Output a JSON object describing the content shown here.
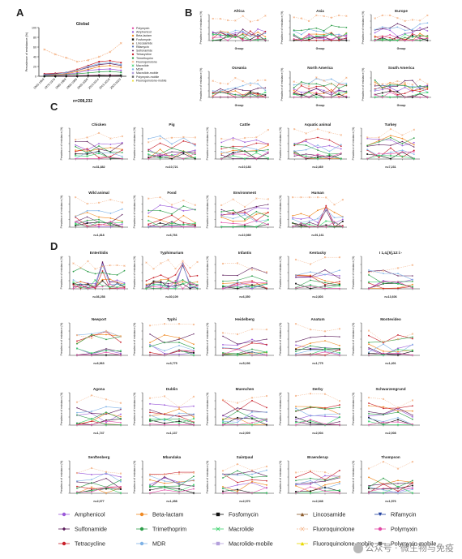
{
  "panels": {
    "A": "A",
    "B": "B",
    "C": "C",
    "D": "D"
  },
  "colors": {
    "Amphenicol": "#9b59d9",
    "Beta-lactam": "#f08a24",
    "Fosfomycin": "#111111",
    "Lincosamide": "#8b5a2b",
    "Rifamycin": "#1f3f9f",
    "Sulfonamide": "#5a1a5a",
    "Trimethoprim": "#2e9e4a",
    "Macrolide": "#3ad16b",
    "Fluoroquinolone": "#f5b58a",
    "Polymyxin": "#e24aa6",
    "Tetracycline": "#c8202a",
    "MDR": "#7fb2e6",
    "Macrolide-mobile": "#b4a0dc",
    "Fluoroquinolone-mobile": "#e8d800",
    "Polymyxin-mobile": "#666666"
  },
  "ylabel": "Prevalence of resistance (%)",
  "xlabel_group": "Group",
  "panel_a": {
    "title": "Global",
    "n_label": "n=208,232",
    "xticks": [
      "1960-1969",
      "1970-1979",
      "1980-1989",
      "1990-1999",
      "2000-2009",
      "2010-2014",
      "2015-2019",
      "2020-2023"
    ],
    "legend": [
      "Polymyxin",
      "Amphenicol",
      "Beta-lactam",
      "Fosfomycin",
      "Lincosamide",
      "Rifamycin",
      "Sulfonamide",
      "Tetracycline",
      "Trimethoprim",
      "Fluoroquinolone",
      "Macrolide",
      "MDR",
      "Macrolide-mobile",
      "Polymyxin-mobile",
      "Fluoroquinolone-mobile"
    ]
  },
  "panel_b": [
    {
      "title": "Africa"
    },
    {
      "title": "Asia"
    },
    {
      "title": "Europe"
    },
    {
      "title": "Oceania"
    },
    {
      "title": "North America"
    },
    {
      "title": "South America"
    }
  ],
  "panel_c": [
    {
      "title": "Chicken",
      "n": "n=31,882"
    },
    {
      "title": "Pig",
      "n": "n=10,721"
    },
    {
      "title": "Cattle",
      "n": "n=10,183"
    },
    {
      "title": "Aquatic animal",
      "n": "n=2,469"
    },
    {
      "title": "Turkey",
      "n": "n=7,231"
    },
    {
      "title": "Wild animal",
      "n": "n=1,818"
    },
    {
      "title": "Food",
      "n": "n=6,766"
    },
    {
      "title": "Environment",
      "n": "n=10,989"
    },
    {
      "title": "Human",
      "n": "n=91,161"
    }
  ],
  "panel_d": [
    {
      "title": "Enteritidis",
      "n": "n=36,258"
    },
    {
      "title": "Typhimurium",
      "n": "n=30,109"
    },
    {
      "title": "Infantis",
      "n": "n=6,350"
    },
    {
      "title": "Kentucky",
      "n": "n=2,803"
    },
    {
      "title": "I 1,4,[5],12:i:-",
      "n": "n=13,606"
    },
    {
      "title": "Newport",
      "n": "n=6,963"
    },
    {
      "title": "Typhi",
      "n": "n=3,775"
    },
    {
      "title": "Heidelberg",
      "n": "n=5,196"
    },
    {
      "title": "Anatum",
      "n": "n=1,775"
    },
    {
      "title": "Montevideo",
      "n": "n=1,401"
    },
    {
      "title": "Agona",
      "n": "n=1,747"
    },
    {
      "title": "Dublin",
      "n": "n=1,137"
    },
    {
      "title": "Muenchen",
      "n": "n=2,009"
    },
    {
      "title": "Derby",
      "n": "n=2,004"
    },
    {
      "title": "Schwarzengrund",
      "n": "n=2,008"
    },
    {
      "title": "Senftenberg",
      "n": "n=2,077"
    },
    {
      "title": "Mbandaka",
      "n": "n=1,458"
    },
    {
      "title": "Saintpaul",
      "n": "n=2,070"
    },
    {
      "title": "Braenderup",
      "n": "n=2,348"
    },
    {
      "title": "Thompson",
      "n": "n=1,576"
    }
  ],
  "bottom_legend": [
    [
      "Amphenicol",
      "Beta-lactam",
      "Fosfomycin",
      "Lincosamide",
      "Rifamycin"
    ],
    [
      "Sulfonamide",
      "Trimethoprim",
      "Macrolide",
      "Fluoroquinolone",
      "Polymyxin"
    ],
    [
      "Tetracycline",
      "MDR",
      "Macrolide-mobile",
      "Fluoroquinolone-mobile",
      "Polymyxin-mobile"
    ]
  ],
  "watermark": "公众号 · 微生物与免疫",
  "chart_data": {
    "type": "line",
    "title": "Global",
    "xlabel": "",
    "ylabel": "Prevalence of resistance (%)",
    "ylim": [
      0,
      100
    ],
    "categories": [
      "1960-1969",
      "1970-1979",
      "1980-1989",
      "1990-1999",
      "2000-2009",
      "2010-2014",
      "2015-2019",
      "2020-2023"
    ],
    "series": [
      {
        "name": "Fluoroquinolone",
        "values": [
          55,
          45,
          38,
          30,
          33,
          40,
          50,
          68
        ]
      },
      {
        "name": "Tetracycline",
        "values": [
          5,
          6,
          8,
          14,
          22,
          30,
          32,
          28
        ]
      },
      {
        "name": "Sulfonamide",
        "values": [
          4,
          5,
          7,
          12,
          18,
          24,
          26,
          22
        ]
      },
      {
        "name": "MDR",
        "values": [
          3,
          4,
          8,
          12,
          20,
          26,
          28,
          24
        ]
      },
      {
        "name": "Beta-lactam",
        "values": [
          2,
          3,
          5,
          10,
          14,
          20,
          22,
          18
        ]
      },
      {
        "name": "Amphenicol",
        "values": [
          2,
          2,
          4,
          7,
          12,
          14,
          15,
          12
        ]
      },
      {
        "name": "Trimethoprim",
        "values": [
          1,
          2,
          3,
          5,
          7,
          9,
          10,
          8
        ]
      },
      {
        "name": "Macrolide",
        "values": [
          0,
          0,
          1,
          1,
          2,
          2,
          3,
          3
        ]
      },
      {
        "name": "Polymyxin",
        "values": [
          0,
          1,
          1,
          2,
          2,
          3,
          3,
          2
        ]
      },
      {
        "name": "Fosfomycin",
        "values": [
          0,
          0,
          0,
          0,
          1,
          1,
          1,
          1
        ]
      }
    ]
  }
}
